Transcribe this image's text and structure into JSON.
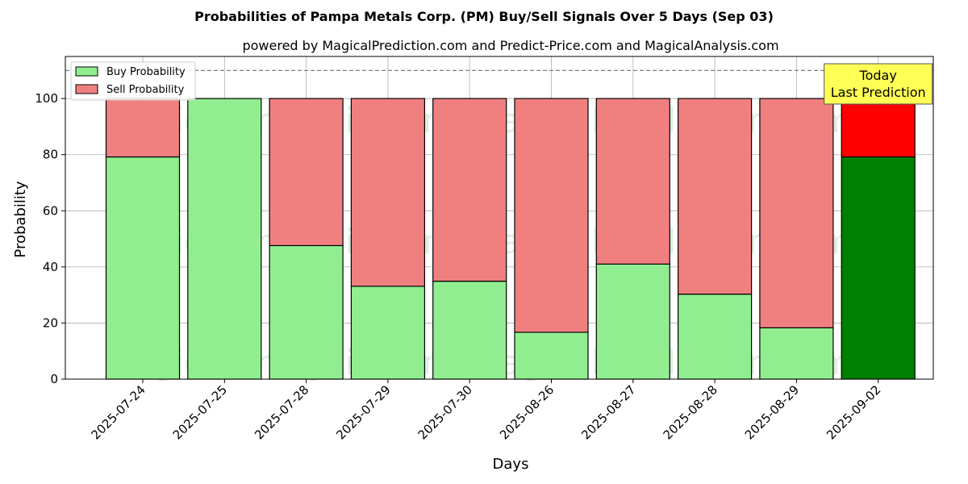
{
  "chart_data": {
    "type": "bar",
    "stacked": true,
    "title": "Probabilities of Pampa Metals Corp. (PM) Buy/Sell Signals Over 5 Days (Sep 03)",
    "subtitle": "powered by MagicalPrediction.com and Predict-Price.com and MagicalAnalysis.com",
    "xlabel": "Days",
    "ylabel": "Probability",
    "ylim": [
      0,
      115
    ],
    "yticks": [
      0,
      20,
      40,
      60,
      80,
      100
    ],
    "grid": true,
    "legend_position": "top-left",
    "reference_line": 110,
    "categories": [
      "2025-07-24",
      "2025-07-25",
      "2025-07-28",
      "2025-07-29",
      "2025-07-30",
      "2025-08-26",
      "2025-08-27",
      "2025-08-28",
      "2025-08-29",
      "2025-09-02"
    ],
    "series": [
      {
        "name": "Buy Probability",
        "color": "#90ee90",
        "highlight_color": "#008000",
        "values": [
          79.2,
          100,
          47.6,
          33.1,
          34.9,
          16.7,
          41.0,
          30.3,
          18.3,
          79.2
        ]
      },
      {
        "name": "Sell Probability",
        "color": "#f08080",
        "highlight_color": "#ff0000",
        "values": [
          20.8,
          0,
          52.4,
          66.9,
          65.1,
          83.3,
          59.0,
          69.7,
          81.7,
          20.8
        ]
      }
    ],
    "highlight_index": 9,
    "annotation": {
      "line1": "Today",
      "line2": "Last Prediction",
      "color": "#ffff55"
    },
    "watermarks": [
      "MagicalAnalysis.com",
      "MagicalPrediction.com"
    ]
  }
}
